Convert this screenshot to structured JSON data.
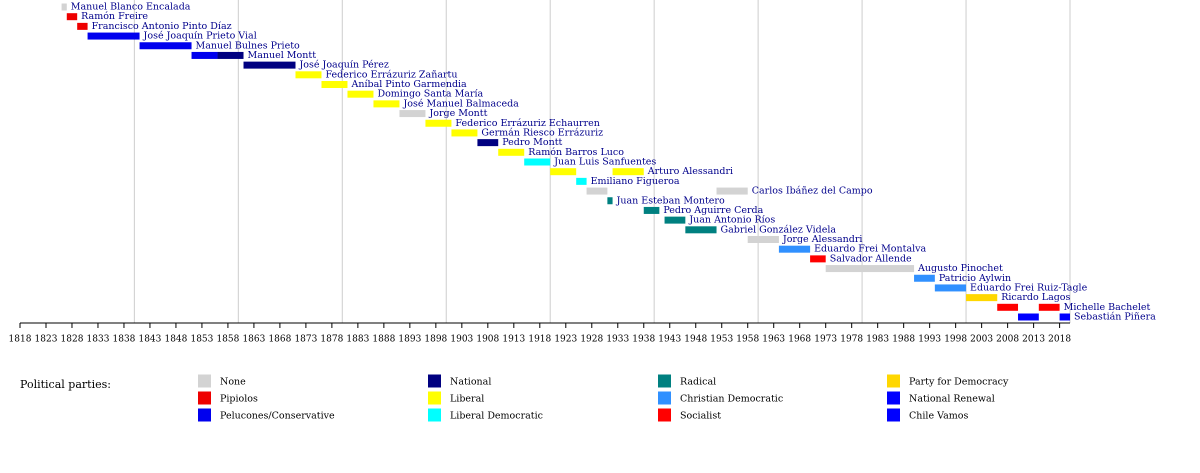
{
  "chart_data": {
    "type": "timeline",
    "xlim": [
      1818,
      2020
    ],
    "xticks": [
      1818,
      1823,
      1828,
      1833,
      1838,
      1843,
      1848,
      1853,
      1858,
      1863,
      1868,
      1873,
      1878,
      1883,
      1888,
      1893,
      1898,
      1903,
      1908,
      1913,
      1918,
      1923,
      1928,
      1933,
      1938,
      1943,
      1948,
      1953,
      1958,
      1963,
      1968,
      1973,
      1978,
      1983,
      1988,
      1993,
      1998,
      2003,
      2008,
      2013,
      2018
    ],
    "grid_lines": [
      1840,
      1860,
      1880,
      1900,
      1920,
      1940,
      1960,
      1980,
      2000,
      2020
    ],
    "legend_title": "Political parties:",
    "parties": [
      {
        "name": "None",
        "color": "#d3d3d3"
      },
      {
        "name": "Pipiolos",
        "color": "#ee0000"
      },
      {
        "name": "Pelucones/Conservative",
        "color": "#0000ee"
      },
      {
        "name": "National",
        "color": "#000080"
      },
      {
        "name": "Liberal",
        "color": "#ffff00"
      },
      {
        "name": "Liberal Democratic",
        "color": "#00ffff"
      },
      {
        "name": "Radical",
        "color": "#008080"
      },
      {
        "name": "Christian Democratic",
        "color": "#3090ff"
      },
      {
        "name": "Socialist",
        "color": "#ff0000"
      },
      {
        "name": "Party for Democracy",
        "color": "#ffd700"
      },
      {
        "name": "National Renewal",
        "color": "#0000ff"
      },
      {
        "name": "Chile Vamos",
        "color": "#0000ff"
      }
    ],
    "presidents": [
      {
        "name": "Manuel Blanco Encalada",
        "terms": [
          {
            "start": 1826,
            "end": 1827,
            "party": "None"
          }
        ]
      },
      {
        "name": "Ramón Freire",
        "terms": [
          {
            "start": 1827,
            "end": 1829,
            "party": "Pipiolos"
          }
        ]
      },
      {
        "name": "Francisco Antonio Pinto Díaz",
        "terms": [
          {
            "start": 1829,
            "end": 1831,
            "party": "Pipiolos"
          }
        ]
      },
      {
        "name": "José Joaquín Prieto Vial",
        "terms": [
          {
            "start": 1831,
            "end": 1841,
            "party": "Pelucones/Conservative"
          }
        ]
      },
      {
        "name": "Manuel Bulnes Prieto",
        "terms": [
          {
            "start": 1841,
            "end": 1851,
            "party": "Pelucones/Conservative"
          }
        ]
      },
      {
        "name": "Manuel Montt",
        "terms": [
          {
            "start": 1851,
            "end": 1856,
            "party": "Pelucones/Conservative"
          },
          {
            "start": 1856,
            "end": 1861,
            "party": "National"
          }
        ]
      },
      {
        "name": "José Joaquín Pérez",
        "terms": [
          {
            "start": 1861,
            "end": 1871,
            "party": "National"
          }
        ]
      },
      {
        "name": "Federico Errázuriz Zañartu",
        "terms": [
          {
            "start": 1871,
            "end": 1876,
            "party": "Liberal"
          }
        ]
      },
      {
        "name": "Aníbal Pinto Garmendia",
        "terms": [
          {
            "start": 1876,
            "end": 1881,
            "party": "Liberal"
          }
        ]
      },
      {
        "name": "Domingo Santa María",
        "terms": [
          {
            "start": 1881,
            "end": 1886,
            "party": "Liberal"
          }
        ]
      },
      {
        "name": "José Manuel Balmaceda",
        "terms": [
          {
            "start": 1886,
            "end": 1891,
            "party": "Liberal"
          }
        ]
      },
      {
        "name": "Jorge Montt",
        "terms": [
          {
            "start": 1891,
            "end": 1896,
            "party": "None"
          }
        ]
      },
      {
        "name": "Federico Errázuriz Echaurren",
        "terms": [
          {
            "start": 1896,
            "end": 1901,
            "party": "Liberal"
          }
        ]
      },
      {
        "name": "Germán Riesco Errázuriz",
        "terms": [
          {
            "start": 1901,
            "end": 1906,
            "party": "Liberal"
          }
        ]
      },
      {
        "name": "Pedro Montt",
        "terms": [
          {
            "start": 1906,
            "end": 1910,
            "party": "National"
          }
        ]
      },
      {
        "name": "Ramón Barros Luco",
        "terms": [
          {
            "start": 1910,
            "end": 1915,
            "party": "Liberal"
          }
        ]
      },
      {
        "name": "Juan Luis Sanfuentes",
        "terms": [
          {
            "start": 1915,
            "end": 1920,
            "party": "Liberal Democratic"
          }
        ]
      },
      {
        "name": "Arturo Alessandri",
        "terms": [
          {
            "start": 1920,
            "end": 1925,
            "party": "Liberal"
          },
          {
            "start": 1932,
            "end": 1938,
            "party": "Liberal"
          }
        ]
      },
      {
        "name": "Emiliano Figueroa",
        "terms": [
          {
            "start": 1925,
            "end": 1927,
            "party": "Liberal Democratic"
          }
        ]
      },
      {
        "name": "Carlos Ibáñez del Campo",
        "terms": [
          {
            "start": 1927,
            "end": 1931,
            "party": "None"
          },
          {
            "start": 1952,
            "end": 1958,
            "party": "None"
          }
        ]
      },
      {
        "name": "Juan Esteban Montero",
        "terms": [
          {
            "start": 1931,
            "end": 1932,
            "party": "Radical"
          }
        ]
      },
      {
        "name": "Pedro Aguirre Cerda",
        "terms": [
          {
            "start": 1938,
            "end": 1941,
            "party": "Radical"
          }
        ]
      },
      {
        "name": "Juan Antonio Ríos",
        "terms": [
          {
            "start": 1942,
            "end": 1946,
            "party": "Radical"
          }
        ]
      },
      {
        "name": "Gabriel González Videla",
        "terms": [
          {
            "start": 1946,
            "end": 1952,
            "party": "Radical"
          }
        ]
      },
      {
        "name": "Jorge Alessandri",
        "terms": [
          {
            "start": 1958,
            "end": 1964,
            "party": "None"
          }
        ]
      },
      {
        "name": "Eduardo Frei Montalva",
        "terms": [
          {
            "start": 1964,
            "end": 1970,
            "party": "Christian Democratic"
          }
        ]
      },
      {
        "name": "Salvador Allende",
        "terms": [
          {
            "start": 1970,
            "end": 1973,
            "party": "Socialist"
          }
        ]
      },
      {
        "name": "Augusto Pinochet",
        "terms": [
          {
            "start": 1973,
            "end": 1990,
            "party": "None"
          }
        ]
      },
      {
        "name": "Patricio Aylwin",
        "terms": [
          {
            "start": 1990,
            "end": 1994,
            "party": "Christian Democratic"
          }
        ]
      },
      {
        "name": "Eduardo Frei Ruiz-Tagle",
        "terms": [
          {
            "start": 1994,
            "end": 2000,
            "party": "Christian Democratic"
          }
        ]
      },
      {
        "name": "Ricardo Lagos",
        "terms": [
          {
            "start": 2000,
            "end": 2006,
            "party": "Party for Democracy"
          }
        ]
      },
      {
        "name": "Michelle Bachelet",
        "terms": [
          {
            "start": 2006,
            "end": 2010,
            "party": "Socialist"
          },
          {
            "start": 2014,
            "end": 2018,
            "party": "Socialist"
          }
        ]
      },
      {
        "name": "Sebastián Piñera",
        "terms": [
          {
            "start": 2010,
            "end": 2014,
            "party": "National Renewal"
          },
          {
            "start": 2018,
            "end": 2020,
            "party": "Chile Vamos"
          }
        ]
      }
    ]
  }
}
